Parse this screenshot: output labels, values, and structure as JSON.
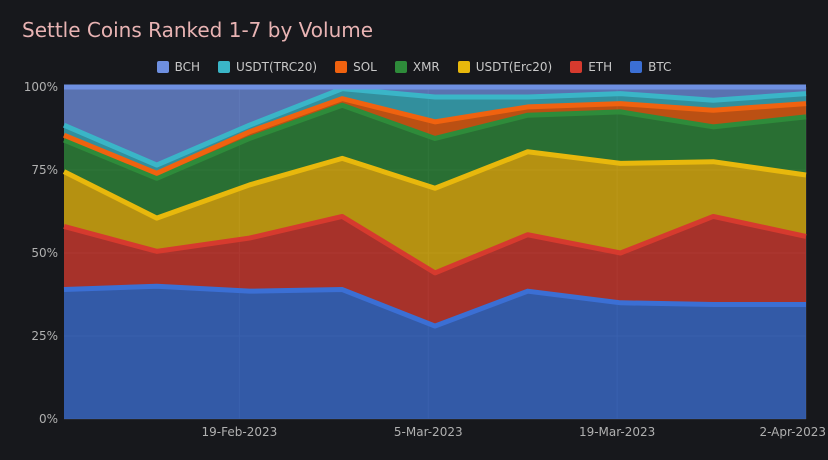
{
  "chart_data": {
    "type": "area",
    "stacked": true,
    "normalized": true,
    "title": "Settle Coins Ranked 1-7 by Volume",
    "xlabel": "",
    "ylabel": "",
    "ylim": [
      0,
      100
    ],
    "y_ticks": [
      "0%",
      "25%",
      "50%",
      "75%",
      "100%"
    ],
    "x_tick_labels": [
      "19-Feb-2023",
      "5-Mar-2023",
      "19-Mar-2023",
      "2-Apr-2023"
    ],
    "x": [
      "6-Feb-2023",
      "13-Feb-2023",
      "20-Feb-2023",
      "27-Feb-2023",
      "6-Mar-2023",
      "13-Mar-2023",
      "20-Mar-2023",
      "27-Mar-2023",
      "2-Apr-2023"
    ],
    "legend_order": [
      "BCH",
      "USDT(TRC20)",
      "SOL",
      "XMR",
      "USDT(Erc20)",
      "ETH",
      "BTC"
    ],
    "series": [
      {
        "name": "BTC",
        "color": "#3b6fd4",
        "values": [
          39,
          40,
          38.5,
          39,
          28,
          38.5,
          35,
          34.5,
          34.5
        ]
      },
      {
        "name": "ETH",
        "color": "#d63a2e",
        "values": [
          19,
          10.5,
          16,
          22,
          16,
          17,
          15,
          26.5,
          20.5
        ]
      },
      {
        "name": "USDT(Erc20)",
        "color": "#e8b80c",
        "values": [
          16.5,
          10,
          16,
          17.5,
          25.5,
          25,
          27,
          16.5,
          18.5
        ]
      },
      {
        "name": "XMR",
        "color": "#2e8b3a",
        "values": [
          9.5,
          12,
          14,
          16,
          15,
          11,
          15.5,
          10.5,
          17.5
        ]
      },
      {
        "name": "SOL",
        "color": "#f0620f",
        "values": [
          1.5,
          1.5,
          2,
          2,
          5,
          2.5,
          2.5,
          5,
          4
        ]
      },
      {
        "name": "USDT(TRC20)",
        "color": "#3ab5c7",
        "values": [
          3,
          2.5,
          2,
          3,
          7.5,
          3,
          3,
          3,
          3
        ]
      },
      {
        "name": "BCH",
        "color": "#6e8fe0",
        "values": [
          11.5,
          23.5,
          11.5,
          0.5,
          3,
          3,
          2,
          4,
          2
        ]
      }
    ]
  }
}
